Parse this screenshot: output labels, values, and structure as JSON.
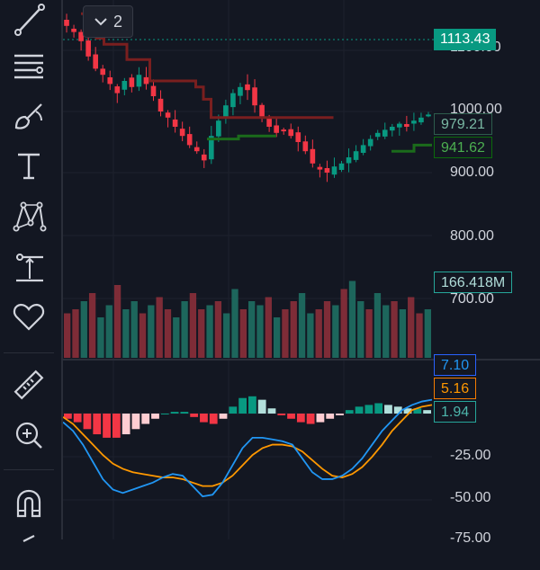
{
  "toolbar": {
    "tools": [
      {
        "name": "trend-line-icon"
      },
      {
        "name": "fib-retracement-icon"
      },
      {
        "name": "brush-icon"
      },
      {
        "name": "text-tool-icon"
      },
      {
        "name": "pattern-tool-icon"
      },
      {
        "name": "measure-projection-icon"
      },
      {
        "name": "heart-favorites-icon"
      },
      {
        "name": "ruler-icon"
      },
      {
        "name": "zoom-in-icon"
      },
      {
        "name": "magnet-icon"
      }
    ]
  },
  "collapse_button": {
    "count": "2",
    "icon": "chevron-down-icon"
  },
  "price_axis": {
    "main_labels": [
      "1100.00",
      "1000.00",
      "900.00",
      "800.00",
      "700.00"
    ],
    "indicator_labels": [
      "-25.00",
      "-50.00",
      "-75.00"
    ]
  },
  "tags": {
    "last_price": {
      "value": "1113.43",
      "color": "#089981"
    },
    "upper_band": {
      "value": "979.21",
      "color": "#2d5c4c"
    },
    "lower_band": {
      "value": "941.62",
      "color": "#0b6b0b"
    },
    "volume": {
      "value": "166.418M",
      "color": "#1e5a52"
    },
    "macd": {
      "value": "7.10",
      "color": "#2962ff"
    },
    "signal": {
      "value": "5.16",
      "color": "#f57c00"
    },
    "histogram": {
      "value": "1.94",
      "color": "#26a69a"
    }
  },
  "colors": {
    "up": "#089981",
    "down": "#f23645",
    "supertrend_down": "#7a1f1f",
    "supertrend_up": "#1b6b1b",
    "macd_line": "#2196f3",
    "signal_line": "#ff9800",
    "hist_up_light": "#b2dfdb",
    "hist_down_light": "#ffcdd2"
  },
  "chart_data": {
    "type": "candlestick",
    "price_axis_range": [
      595,
      1210
    ],
    "indicator_axis_range": [
      -82,
      12
    ],
    "close_path": [
      1140,
      1130,
      1115,
      1090,
      1070,
      1060,
      1045,
      1030,
      1050,
      1040,
      1060,
      1045,
      1025,
      1000,
      990,
      975,
      960,
      945,
      935,
      920,
      960,
      985,
      1010,
      1030,
      1040,
      1035,
      1010,
      990,
      975,
      965,
      970,
      960,
      950,
      935,
      915,
      905,
      900,
      910,
      915,
      925,
      935,
      945,
      955,
      965,
      970,
      975,
      980,
      975,
      985,
      990,
      995
    ],
    "supertrend_down": [
      1160,
      1140,
      1120,
      1110,
      1110,
      1110,
      1085,
      1085,
      1085,
      1050,
      1050,
      1050,
      1050,
      1050,
      1050,
      1040,
      1020,
      990,
      990,
      990,
      990,
      990,
      990,
      990,
      990,
      990,
      990,
      990,
      990,
      990,
      990,
      990,
      990
    ],
    "supertrend_up": [
      955,
      955,
      955,
      955,
      955,
      960,
      960,
      960,
      960,
      960,
      960
    ],
    "supertrend_up2": [
      935,
      935,
      935,
      935,
      935,
      945,
      945,
      945,
      945
    ],
    "volume_profile": [
      0.55,
      0.6,
      0.7,
      0.8,
      0.5,
      0.65,
      0.9,
      0.6,
      0.7,
      0.55,
      0.65,
      0.75,
      0.6,
      0.5,
      0.7,
      0.8,
      0.6,
      0.65,
      0.7,
      0.55,
      0.85,
      0.6,
      0.7,
      0.65,
      0.75,
      0.5,
      0.6,
      0.7,
      0.8,
      0.55,
      0.6,
      0.7,
      0.65,
      0.85,
      0.95,
      0.7,
      0.6,
      0.8,
      0.65,
      0.7,
      0.6,
      0.75,
      0.55,
      0.6
    ],
    "macd_line": [
      -5,
      -10,
      -18,
      -28,
      -38,
      -44,
      -46,
      -44,
      -42,
      -40,
      -37,
      -35,
      -36,
      -42,
      -48,
      -47,
      -40,
      -30,
      -20,
      -14,
      -14,
      -15,
      -16,
      -18,
      -26,
      -34,
      -38,
      -38,
      -36,
      -32,
      -26,
      -18,
      -10,
      -4,
      2,
      5,
      7,
      8
    ],
    "signal_line": [
      -2,
      -6,
      -12,
      -18,
      -24,
      -29,
      -32,
      -34,
      -35,
      -36,
      -37,
      -37,
      -38,
      -40,
      -42,
      -42,
      -40,
      -36,
      -30,
      -24,
      -20,
      -18,
      -18,
      -19,
      -22,
      -27,
      -32,
      -36,
      -37,
      -35,
      -31,
      -25,
      -18,
      -10,
      -4,
      2,
      4,
      5
    ],
    "histogram": [
      -3,
      -5,
      -9,
      -12,
      -14,
      -14,
      -12,
      -9,
      -6,
      -3,
      0,
      1,
      1,
      -2,
      -5,
      -6,
      -3,
      4,
      9,
      10,
      8,
      3,
      -1,
      -3,
      -5,
      -6,
      -5,
      -3,
      -1,
      2,
      4,
      5,
      6,
      5,
      4,
      3,
      3,
      2
    ]
  }
}
